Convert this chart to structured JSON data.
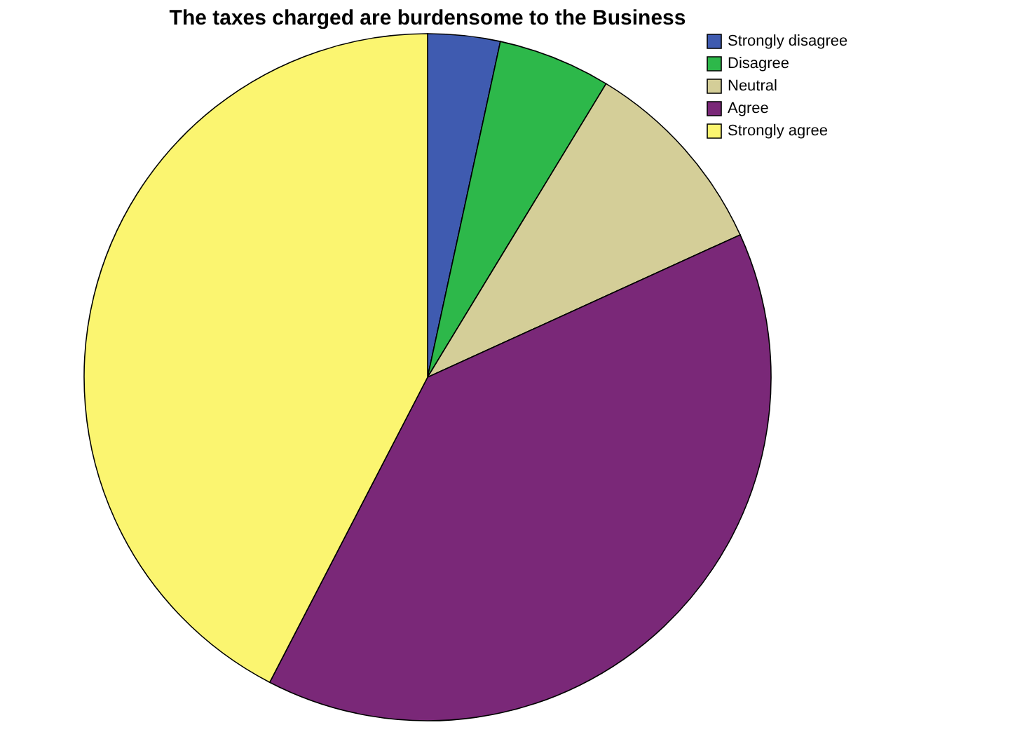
{
  "chart_data": {
    "type": "pie",
    "title": "The taxes charged are burdensome to the Business",
    "categories": [
      "Strongly disagree",
      "Disagree",
      "Neutral",
      "Agree",
      "Strongly agree"
    ],
    "values": [
      3.4,
      5.3,
      9.5,
      39.4,
      42.4
    ],
    "colors": [
      "#3f5bb0",
      "#2db84a",
      "#d4ce98",
      "#7a2878",
      "#fbf570"
    ],
    "legend": "top right"
  }
}
